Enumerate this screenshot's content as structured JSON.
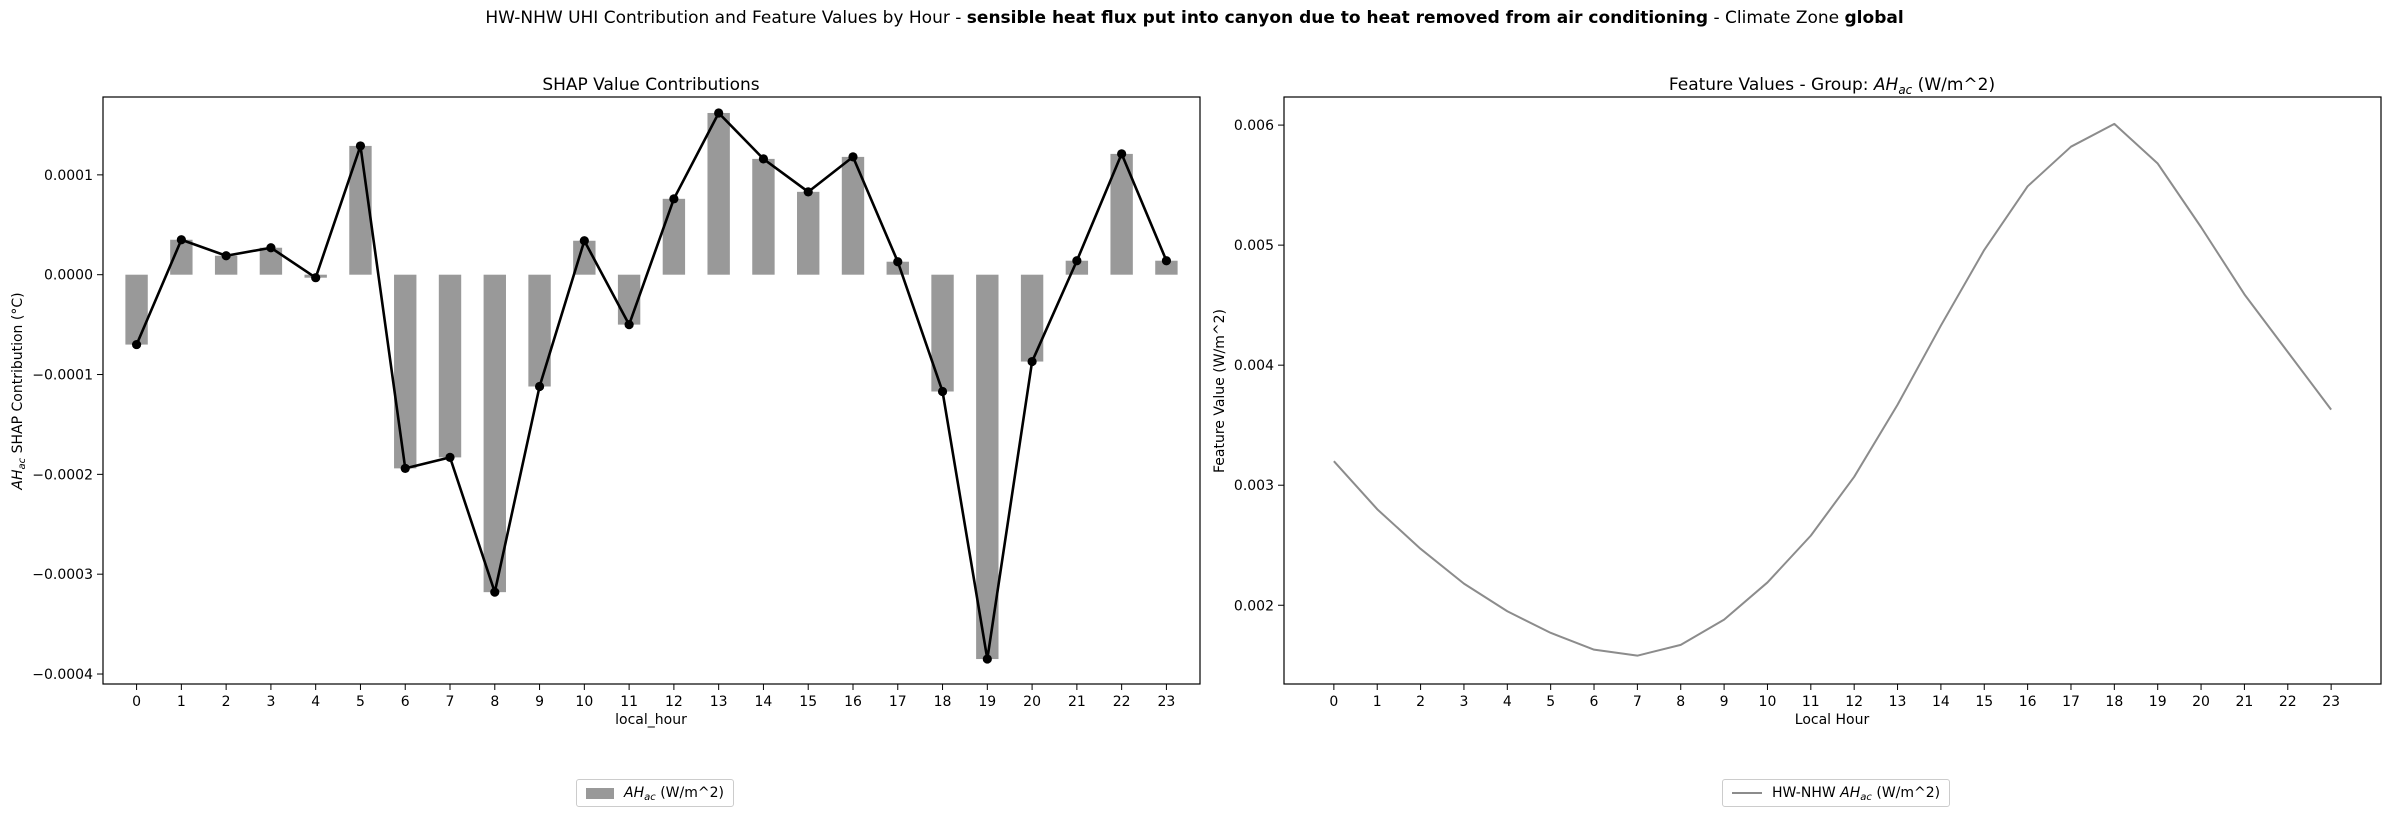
{
  "suptitle": {
    "prefix": "HW-NHW UHI Contribution and Feature Values by Hour - ",
    "feature_desc": "sensible heat flux put into canyon due to heat removed from air conditioning",
    "middle": " - Climate Zone ",
    "zone": "global"
  },
  "colors": {
    "bar": "#999999",
    "line": "#000000",
    "feature_line": "#8c8c8c"
  },
  "chart_data": [
    {
      "type": "bar",
      "title": "SHAP Value Contributions",
      "xlabel": "local_hour",
      "ylabel_prefix": "AH",
      "ylabel_sub": "ac",
      "ylabel_suffix": " SHAP Contribution (°C)",
      "categories": [
        "0",
        "1",
        "2",
        "3",
        "4",
        "5",
        "6",
        "7",
        "8",
        "9",
        "10",
        "11",
        "12",
        "13",
        "14",
        "15",
        "16",
        "17",
        "18",
        "19",
        "20",
        "21",
        "22",
        "23"
      ],
      "ylim": [
        -0.00041,
        0.000178
      ],
      "yticks": [
        -0.0004,
        -0.0003,
        -0.0002,
        -0.0001,
        0.0,
        0.0001
      ],
      "ytick_labels": [
        "−0.0004",
        "−0.0003",
        "−0.0002",
        "−0.0001",
        "0.0000",
        "0.0001"
      ],
      "series": [
        {
          "name": "AH_ac (W/m^2)",
          "legend_prefix": "AH",
          "legend_sub": "ac",
          "legend_suffix": " (W/m^2)",
          "values": [
            -7e-05,
            3.5e-05,
            1.9e-05,
            2.7e-05,
            -3e-06,
            0.000129,
            -0.000194,
            -0.000183,
            -0.000318,
            -0.000112,
            3.4e-05,
            -5e-05,
            7.6e-05,
            0.000162,
            0.000116,
            8.3e-05,
            0.000118,
            1.3e-05,
            -0.000117,
            -0.000385,
            -8.7e-05,
            1.4e-05,
            0.000121,
            1.4e-05
          ]
        }
      ],
      "total_line": [
        -7e-05,
        3.5e-05,
        1.9e-05,
        2.7e-05,
        -3e-06,
        0.000129,
        -0.000194,
        -0.000183,
        -0.000318,
        -0.000112,
        3.4e-05,
        -5e-05,
        7.6e-05,
        0.000162,
        0.000116,
        8.3e-05,
        0.000118,
        1.3e-05,
        -0.000117,
        -0.000385,
        -8.7e-05,
        1.4e-05,
        0.000121,
        1.4e-05
      ],
      "grid": false,
      "legend_position": "bottom-center"
    },
    {
      "type": "line",
      "title_prefix": "Feature Values - Group: ",
      "title_var": "AH",
      "title_sub": "ac",
      "title_suffix": " (W/m^2)",
      "xlabel": "Local Hour",
      "ylabel": "Feature Value (W/m^2)",
      "x": [
        0,
        1,
        2,
        3,
        4,
        5,
        6,
        7,
        8,
        9,
        10,
        11,
        12,
        13,
        14,
        15,
        16,
        17,
        18,
        19,
        20,
        21,
        22,
        23
      ],
      "xtick_labels": [
        "0",
        "1",
        "2",
        "3",
        "4",
        "5",
        "6",
        "7",
        "8",
        "9",
        "10",
        "11",
        "12",
        "13",
        "14",
        "15",
        "16",
        "17",
        "18",
        "19",
        "20",
        "21",
        "22",
        "23"
      ],
      "ylim": [
        0.001344,
        0.006234
      ],
      "yticks": [
        0.002,
        0.003,
        0.004,
        0.005,
        0.006
      ],
      "ytick_labels": [
        "0.002",
        "0.003",
        "0.004",
        "0.005",
        "0.006"
      ],
      "series": [
        {
          "name": "HW-NHW AH_ac (W/m^2)",
          "legend_prefix": "HW-NHW ",
          "legend_var": "AH",
          "legend_sub": "ac",
          "legend_suffix": " (W/m^2)",
          "values": [
            0.0032,
            0.0028,
            0.00247,
            0.00218,
            0.00195,
            0.00177,
            0.00163,
            0.00158,
            0.00167,
            0.00188,
            0.00219,
            0.00258,
            0.00307,
            0.00367,
            0.00433,
            0.00496,
            0.00549,
            0.00582,
            0.00601,
            0.00568,
            0.00515,
            0.00459,
            0.00411,
            0.00363
          ]
        }
      ],
      "grid": false,
      "legend_position": "bottom-center"
    }
  ]
}
